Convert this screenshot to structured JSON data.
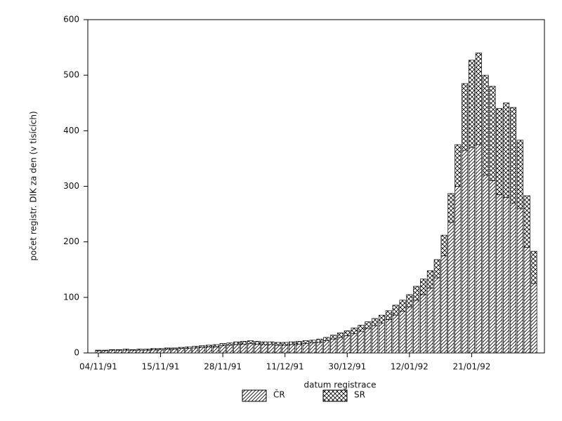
{
  "chart_data": {
    "type": "stacked_bar",
    "xlabel": "datum registrace",
    "ylabel": "počet registr. DIK za den (v tisících)",
    "categories": [
      "04/11/91",
      null,
      null,
      null,
      null,
      null,
      null,
      null,
      null,
      "15/11/91",
      null,
      null,
      null,
      null,
      null,
      null,
      null,
      null,
      "28/11/91",
      null,
      null,
      null,
      null,
      null,
      null,
      null,
      null,
      "11/12/91",
      null,
      null,
      null,
      null,
      null,
      null,
      null,
      null,
      "30/12/91",
      null,
      null,
      null,
      null,
      null,
      null,
      null,
      null,
      "12/01/92",
      null,
      null,
      null,
      null,
      null,
      null,
      null,
      null,
      "21/01/92",
      null,
      null,
      null,
      null,
      null,
      null,
      null,
      null,
      null
    ],
    "series": [
      {
        "name": "ČR",
        "color": "#000000",
        "hatch": "diagonal",
        "values": [
          4,
          4,
          5,
          5,
          5,
          5,
          5,
          5,
          6,
          6,
          7,
          7,
          8,
          8,
          9,
          10,
          11,
          11,
          13,
          14,
          15,
          16,
          17,
          16,
          15,
          15,
          14,
          14,
          15,
          16,
          17,
          18,
          19,
          22,
          25,
          28,
          31,
          35,
          39,
          44,
          49,
          54,
          60,
          68,
          75,
          83,
          95,
          105,
          117,
          135,
          175,
          235,
          300,
          365,
          370,
          375,
          320,
          310,
          285,
          280,
          270,
          260,
          190,
          125
        ]
      },
      {
        "name": "SR",
        "color": "#000000",
        "hatch": "cross",
        "values": [
          1,
          1,
          1,
          1,
          2,
          1,
          2,
          2,
          2,
          2,
          2,
          2,
          2,
          3,
          3,
          3,
          3,
          4,
          4,
          4,
          5,
          5,
          5,
          5,
          5,
          5,
          5,
          5,
          5,
          5,
          5,
          5,
          6,
          6,
          7,
          8,
          9,
          10,
          11,
          12,
          13,
          14,
          16,
          18,
          20,
          22,
          25,
          28,
          31,
          33,
          37,
          52,
          75,
          120,
          157,
          165,
          180,
          170,
          155,
          170,
          172,
          123,
          93,
          58
        ]
      }
    ],
    "ylim": [
      0,
      600
    ],
    "yticks": [
      0,
      100,
      200,
      300,
      400,
      500,
      600
    ],
    "legend": "bottom"
  }
}
